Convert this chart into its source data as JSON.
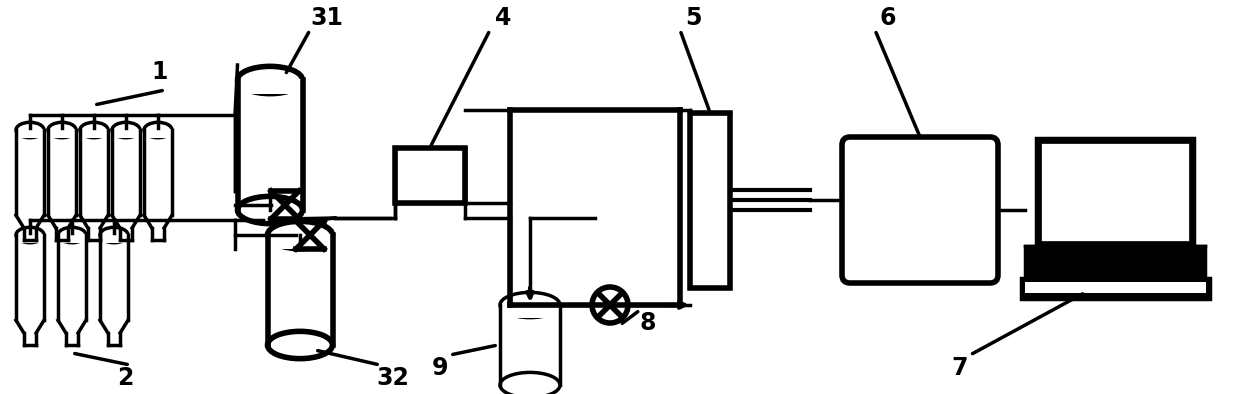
{
  "bg_color": "#ffffff",
  "line_color": "#000000",
  "lw": 2.5,
  "lw_thick": 4.0,
  "fig_width": 12.4,
  "fig_height": 3.94,
  "label_fontsize": 17,
  "label_fontweight": "bold"
}
